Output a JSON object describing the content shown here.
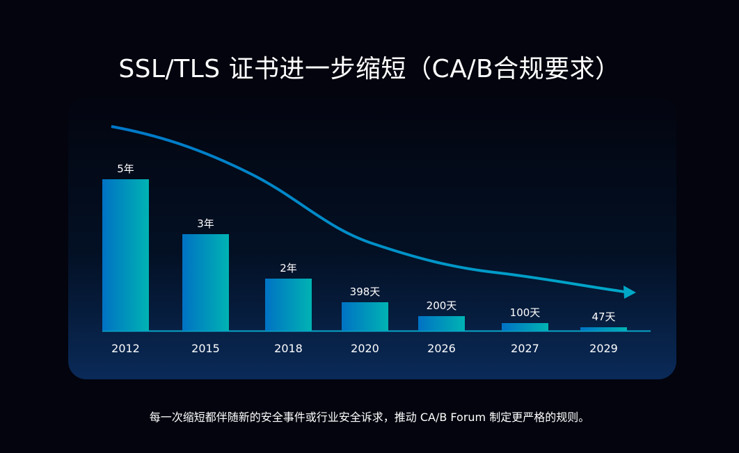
{
  "title": "SSL/TLS 证书进一步缩短（CA/B合规要求）",
  "footer": "每一次缩短都伴随新的安全事件或行业安全诉求，推动 CA/B Forum 制定更严格的规则。",
  "colors": {
    "bar_start": "#0072c4",
    "bar_end": "#00b3b3",
    "curve": "#0090d0",
    "axis": "#0aa6c8"
  },
  "chart_data": {
    "type": "bar",
    "title": "SSL/TLS 证书进一步缩短（CA/B合规要求）",
    "categories": [
      "2012",
      "2015",
      "2018",
      "2020",
      "2026",
      "2027",
      "2029"
    ],
    "values_days": [
      1825,
      1095,
      730,
      398,
      200,
      100,
      47
    ],
    "labels": [
      "5年",
      "3年",
      "2年",
      "398天",
      "200天",
      "100天",
      "47天"
    ],
    "xlabel": "",
    "ylabel": "",
    "trend": "decreasing arrow"
  }
}
